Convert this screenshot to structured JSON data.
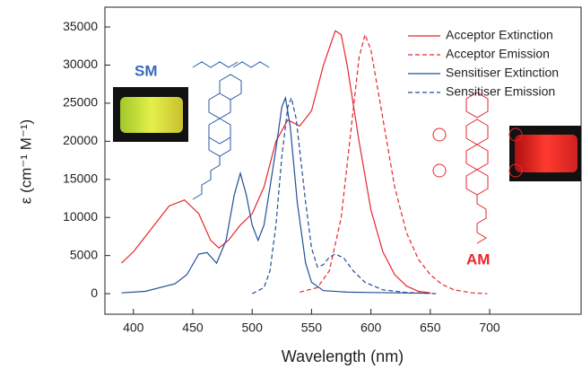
{
  "chart_data": {
    "type": "line",
    "x_label": "Wavelength (nm)",
    "y_label": "ε (cm⁻¹ M⁻¹)",
    "xlim": [
      376,
      777
    ],
    "ylim": [
      -2700,
      37600
    ],
    "xticks": [
      400,
      450,
      500,
      550,
      600,
      650,
      700
    ],
    "yticks": [
      0,
      5000,
      10000,
      15000,
      20000,
      25000,
      30000,
      35000
    ],
    "legend": "upper right",
    "annotations": [
      "SM",
      "AM"
    ],
    "series": [
      {
        "name": "Acceptor Extinction",
        "color": "#e8262b",
        "style": "solid",
        "x": [
          390,
          400,
          420,
          430,
          443,
          455,
          465,
          472,
          480,
          490,
          500,
          510,
          520,
          530,
          540,
          550,
          560,
          570,
          575,
          580,
          590,
          600,
          610,
          620,
          630,
          640,
          650
        ],
        "values": [
          4000,
          5500,
          9500,
          11500,
          12300,
          10500,
          7000,
          6000,
          7000,
          9000,
          10500,
          14000,
          20000,
          22800,
          22000,
          24000,
          30000,
          34500,
          34000,
          30000,
          20000,
          11000,
          5500,
          2500,
          1000,
          300,
          100
        ]
      },
      {
        "name": "Acceptor Emission",
        "color": "#e8262b",
        "style": "dashed",
        "x": [
          540,
          555,
          565,
          575,
          585,
          590,
          595,
          600,
          610,
          620,
          630,
          640,
          650,
          660,
          670,
          685,
          698
        ],
        "values": [
          200,
          800,
          3000,
          10000,
          24000,
          31000,
          34000,
          32000,
          23000,
          14000,
          8000,
          4500,
          2500,
          1200,
          500,
          100,
          0
        ]
      },
      {
        "name": "Sensitiser Extinction",
        "color": "#1f4e9c",
        "style": "solid",
        "x": [
          390,
          410,
          425,
          435,
          445,
          455,
          462,
          470,
          478,
          485,
          490,
          495,
          500,
          505,
          510,
          515,
          520,
          525,
          528,
          532,
          538,
          545,
          550,
          560,
          580,
          600,
          650
        ],
        "values": [
          100,
          300,
          900,
          1300,
          2500,
          5200,
          5400,
          4000,
          7000,
          13000,
          15800,
          13000,
          9000,
          7000,
          9000,
          14000,
          19000,
          24500,
          25700,
          22000,
          12000,
          4000,
          1500,
          400,
          200,
          150,
          50
        ]
      },
      {
        "name": "Sensitiser Emission",
        "color": "#1f4e9c",
        "style": "dashed",
        "x": [
          500,
          510,
          515,
          520,
          525,
          530,
          533,
          537,
          545,
          550,
          555,
          560,
          565,
          570,
          577,
          585,
          595,
          610,
          630,
          655
        ],
        "values": [
          0,
          800,
          3000,
          9000,
          18000,
          24500,
          25700,
          23000,
          12000,
          6000,
          3500,
          3800,
          4800,
          5200,
          4700,
          3000,
          1500,
          500,
          150,
          0
        ]
      }
    ]
  }
}
